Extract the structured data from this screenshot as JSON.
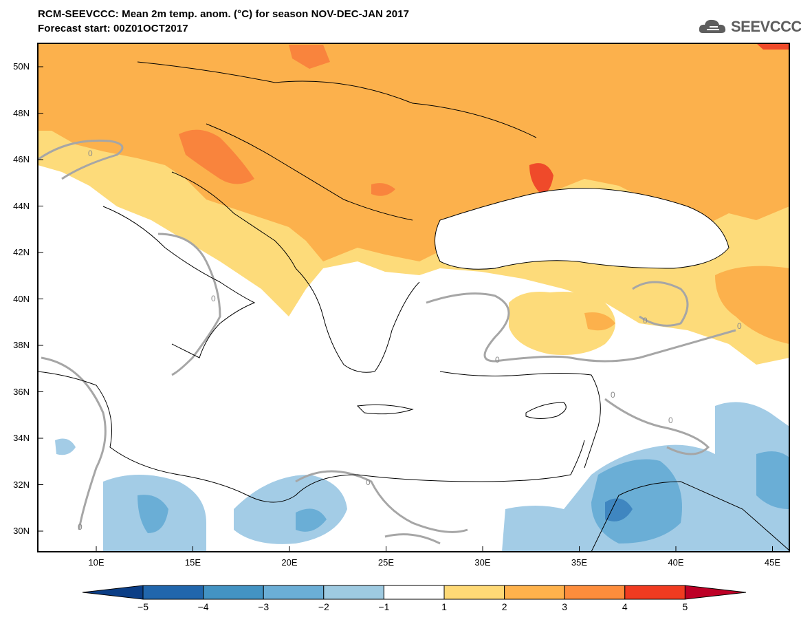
{
  "header": {
    "title_line1": "RCM-SEEVCCC: Mean 2m temp. anom. (°C) for season NOV-DEC-JAN 2017",
    "title_line2": "Forecast start: 00Z01OCT2017",
    "logo_text": "SEEVCCC",
    "logo_icon": "cloud-icon"
  },
  "axes": {
    "lat_ticks": [
      "50N",
      "48N",
      "46N",
      "44N",
      "42N",
      "40N",
      "38N",
      "36N",
      "34N",
      "32N",
      "30N"
    ],
    "lon_ticks": [
      "10E",
      "15E",
      "20E",
      "25E",
      "30E",
      "35E",
      "40E",
      "45E"
    ]
  },
  "contour_labels": [
    "0",
    "0",
    "0",
    "0",
    "0",
    "0",
    "0",
    "0",
    "0"
  ],
  "colorbar": {
    "labels": [
      "−5",
      "−4",
      "−3",
      "−2",
      "−1",
      "1",
      "2",
      "3",
      "4",
      "5"
    ],
    "colors": [
      "#0b3e86",
      "#2166ac",
      "#4393c3",
      "#6baed6",
      "#9ecae1",
      "#ffffff",
      "#fed976",
      "#feb24c",
      "#fd8d3c",
      "#f03b20",
      "#bd0026"
    ]
  },
  "palette": {
    "anom_1_2": "#fddb7a",
    "anom_2_3": "#fcb14c",
    "anom_3_4": "#f9843d",
    "anom_4_5": "#ef4a2a",
    "anom_m1_m2": "#a3cce6",
    "anom_m2_m3": "#6aaed6",
    "anom_m3_m4": "#3f86c0",
    "contour_zero": "#a6a6a6",
    "coast": "#000000"
  }
}
